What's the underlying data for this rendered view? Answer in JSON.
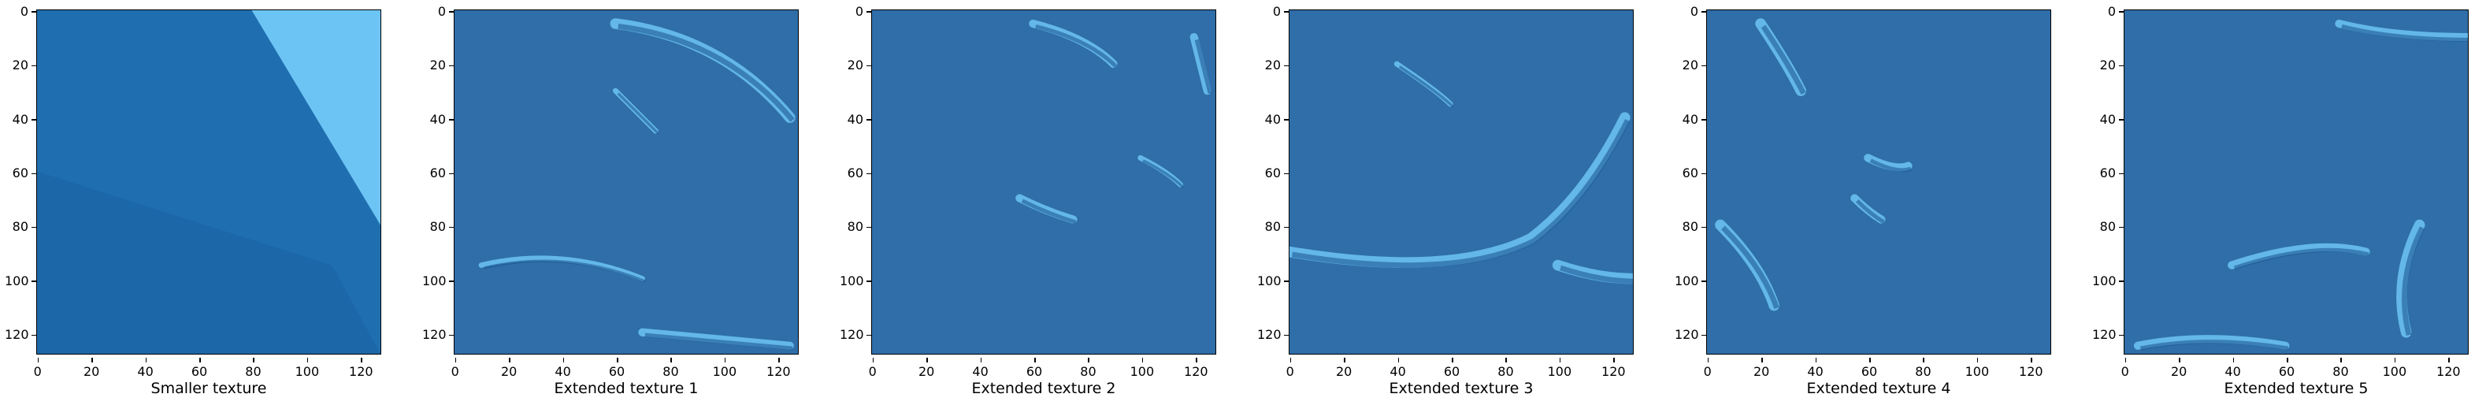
{
  "panels": [
    {
      "title": "Smaller texture",
      "variant": "smooth"
    },
    {
      "title": "Extended texture 1",
      "variant": "t1"
    },
    {
      "title": "Extended texture 2",
      "variant": "t2"
    },
    {
      "title": "Extended texture 3",
      "variant": "t3"
    },
    {
      "title": "Extended texture 4",
      "variant": "t4"
    },
    {
      "title": "Extended texture 5",
      "variant": "t5"
    }
  ],
  "ticks": {
    "y": [
      "0",
      "20",
      "40",
      "60",
      "80",
      "100",
      "120"
    ],
    "x": [
      "0",
      "20",
      "40",
      "60",
      "80",
      "100",
      "120"
    ]
  },
  "colors": {
    "base": "#2f6ea8",
    "dark": "#1f5a96",
    "light": "#6cc4f4",
    "mid": "#3a7fbf"
  }
}
